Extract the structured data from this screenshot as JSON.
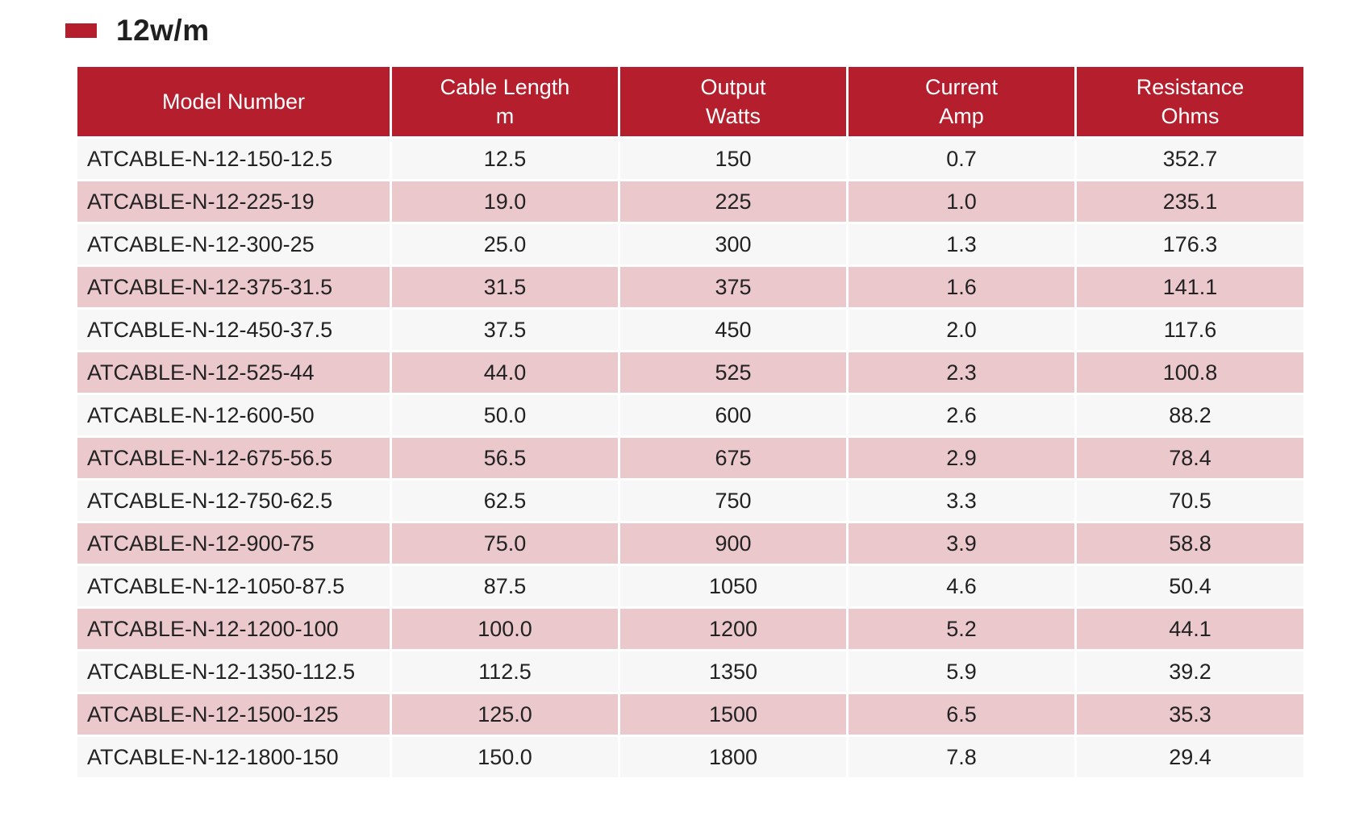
{
  "title": "12w/m",
  "accent_color": "#b51f2d",
  "stripe_color": "#ebc8cc",
  "headers": [
    {
      "line1": "Model Number",
      "line2": ""
    },
    {
      "line1": "Cable Length",
      "line2": "m"
    },
    {
      "line1": "Output",
      "line2": "Watts"
    },
    {
      "line1": "Current",
      "line2": "Amp"
    },
    {
      "line1": "Resistance",
      "line2": "Ohms"
    }
  ],
  "rows": [
    [
      "ATCABLE-N-12-150-12.5",
      "12.5",
      "150",
      "0.7",
      "352.7"
    ],
    [
      "ATCABLE-N-12-225-19",
      "19.0",
      "225",
      "1.0",
      "235.1"
    ],
    [
      "ATCABLE-N-12-300-25",
      "25.0",
      "300",
      "1.3",
      "176.3"
    ],
    [
      "ATCABLE-N-12-375-31.5",
      "31.5",
      "375",
      "1.6",
      "141.1"
    ],
    [
      "ATCABLE-N-12-450-37.5",
      "37.5",
      "450",
      "2.0",
      "117.6"
    ],
    [
      "ATCABLE-N-12-525-44",
      "44.0",
      "525",
      "2.3",
      "100.8"
    ],
    [
      "ATCABLE-N-12-600-50",
      "50.0",
      "600",
      "2.6",
      "88.2"
    ],
    [
      "ATCABLE-N-12-675-56.5",
      "56.5",
      "675",
      "2.9",
      "78.4"
    ],
    [
      "ATCABLE-N-12-750-62.5",
      "62.5",
      "750",
      "3.3",
      "70.5"
    ],
    [
      "ATCABLE-N-12-900-75",
      "75.0",
      "900",
      "3.9",
      "58.8"
    ],
    [
      "ATCABLE-N-12-1050-87.5",
      "87.5",
      "1050",
      "4.6",
      "50.4"
    ],
    [
      "ATCABLE-N-12-1200-100",
      "100.0",
      "1200",
      "5.2",
      "44.1"
    ],
    [
      "ATCABLE-N-12-1350-112.5",
      "112.5",
      "1350",
      "5.9",
      "39.2"
    ],
    [
      "ATCABLE-N-12-1500-125",
      "125.0",
      "1500",
      "6.5",
      "35.3"
    ],
    [
      "ATCABLE-N-12-1800-150",
      "150.0",
      "1800",
      "7.8",
      "29.4"
    ]
  ]
}
